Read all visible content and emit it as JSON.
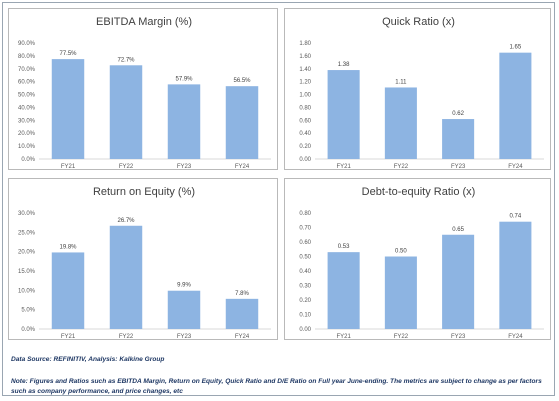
{
  "source_text": "Data Source: REFINITIV, Analysis: Kalkine Group",
  "note_text": "Note: Figures and Ratios such as EBITDA Margin, Return on Equity, Quick Ratio and D/E Ratio on Full  year June-ending. The metrics are subject to change as per factors such as company performance, and price changes, etc",
  "colors": {
    "bar": "#8db4e2",
    "frame": "#9aa6b2",
    "note_text": "#1f3864"
  },
  "chart_data": [
    {
      "type": "bar",
      "title": "EBITDA  Margin (%)",
      "categories": [
        "FY21",
        "FY22",
        "FY23",
        "FY24"
      ],
      "values": [
        77.5,
        72.7,
        57.9,
        56.5
      ],
      "labels": [
        "77.5%",
        "72.7%",
        "57.9%",
        "56.5%"
      ],
      "ylim": [
        0,
        90
      ],
      "yticks": [
        0,
        10,
        20,
        30,
        40,
        50,
        60,
        70,
        80,
        90
      ],
      "ytick_labels": [
        "0.0%",
        "10.0%",
        "20.0%",
        "30.0%",
        "40.0%",
        "50.0%",
        "60.0%",
        "70.0%",
        "80.0%",
        "90.0%"
      ],
      "grid": false
    },
    {
      "type": "bar",
      "title": "Quick Ratio (x)",
      "categories": [
        "FY21",
        "FY22",
        "FY23",
        "FY24"
      ],
      "values": [
        1.38,
        1.11,
        0.62,
        1.65
      ],
      "labels": [
        "1.38",
        "1.11",
        "0.62",
        "1.65"
      ],
      "ylim": [
        0,
        1.8
      ],
      "yticks": [
        0,
        0.2,
        0.4,
        0.6,
        0.8,
        1.0,
        1.2,
        1.4,
        1.6,
        1.8
      ],
      "ytick_labels": [
        "0.00",
        "0.20",
        "0.40",
        "0.60",
        "0.80",
        "1.00",
        "1.20",
        "1.40",
        "1.60",
        "1.80"
      ],
      "grid": false
    },
    {
      "type": "bar",
      "title": "Return on Equity (%)",
      "categories": [
        "FY21",
        "FY22",
        "FY23",
        "FY24"
      ],
      "values": [
        19.8,
        26.7,
        9.9,
        7.8
      ],
      "labels": [
        "19.8%",
        "26.7%",
        "9.9%",
        "7.8%"
      ],
      "ylim": [
        0,
        30
      ],
      "yticks": [
        0,
        5,
        10,
        15,
        20,
        25,
        30
      ],
      "ytick_labels": [
        "0.0%",
        "5.0%",
        "10.0%",
        "15.0%",
        "20.0%",
        "25.0%",
        "30.0%"
      ],
      "grid": false
    },
    {
      "type": "bar",
      "title": "Debt-to-equity Ratio (x)",
      "categories": [
        "FY21",
        "FY22",
        "FY23",
        "FY24"
      ],
      "values": [
        0.53,
        0.5,
        0.65,
        0.74
      ],
      "labels": [
        "0.53",
        "0.50",
        "0.65",
        "0.74"
      ],
      "ylim": [
        0,
        0.8
      ],
      "yticks": [
        0,
        0.1,
        0.2,
        0.3,
        0.4,
        0.5,
        0.6,
        0.7,
        0.8
      ],
      "ytick_labels": [
        "0.00",
        "0.10",
        "0.20",
        "0.30",
        "0.40",
        "0.50",
        "0.60",
        "0.70",
        "0.80"
      ],
      "grid": false
    }
  ]
}
